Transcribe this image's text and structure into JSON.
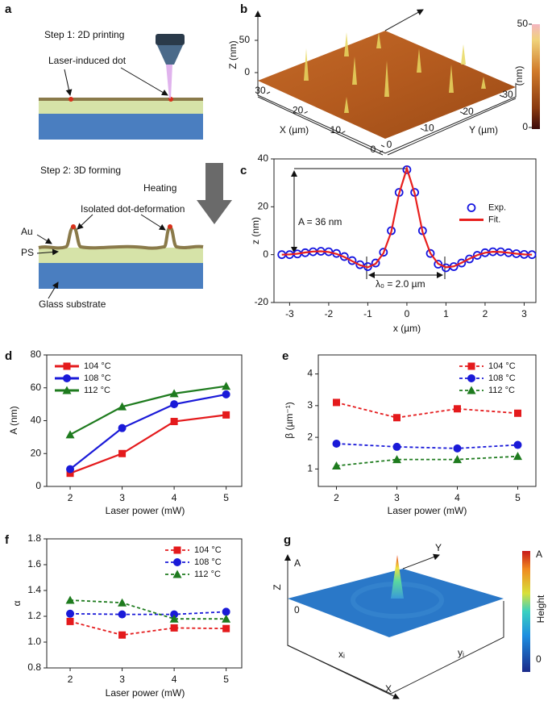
{
  "panel_a": {
    "label": "a",
    "step1": "Step 1: 2D printing",
    "dot_label": "Laser-induced dot",
    "step2": "Step 2: 3D forming",
    "heating": "Heating",
    "deformation": "Isolated dot-deformation",
    "au": "Au",
    "ps": "PS",
    "glass": "Glass substrate"
  },
  "chart_data": [
    {
      "type": "surface",
      "label": "b",
      "zlabel": "Z (nm)",
      "xlabel": "X (µm)",
      "ylabel": "Y (µm)",
      "colorbar_label": "(nm)",
      "xlim": [
        0,
        30
      ],
      "xticks": [
        0,
        10,
        20,
        30
      ],
      "ylim": [
        0,
        30
      ],
      "yticks": [
        0,
        10,
        20,
        30
      ],
      "zlim": [
        0,
        70
      ],
      "zticks": [
        0,
        50
      ],
      "clim": [
        0,
        50
      ],
      "cticks": [
        0,
        50
      ]
    },
    {
      "type": "line",
      "label": "c",
      "xlabel": "x (µm)",
      "ylabel": "z (nm)",
      "xlim": [
        -3.4,
        3.3
      ],
      "xticks": [
        -3,
        -2,
        -1,
        0,
        1,
        2,
        3
      ],
      "ylim": [
        -20,
        40
      ],
      "yticks": [
        -20,
        0,
        20,
        40
      ],
      "legend": "center-right",
      "annotations": [
        "A = 36 nm",
        "λ₀ = 2.0 µm"
      ],
      "x": [
        -3.2,
        -3.0,
        -2.8,
        -2.6,
        -2.4,
        -2.2,
        -2.0,
        -1.8,
        -1.6,
        -1.4,
        -1.2,
        -1.0,
        -0.8,
        -0.6,
        -0.4,
        -0.2,
        0,
        0.2,
        0.4,
        0.6,
        0.8,
        1.0,
        1.2,
        1.4,
        1.6,
        1.8,
        2.0,
        2.2,
        2.4,
        2.6,
        2.8,
        3.0,
        3.2
      ],
      "series": [
        {
          "name": "Exp.",
          "color": "#1515e0",
          "marker": "open-circle",
          "line": "none",
          "values": [
            0,
            0,
            0.3,
            0.8,
            1.2,
            1.4,
            1.2,
            0.5,
            -0.8,
            -2.5,
            -4.2,
            -5,
            -3.5,
            1,
            10,
            26,
            35.5,
            26,
            10,
            0.5,
            -4,
            -5.5,
            -5,
            -3.5,
            -1.8,
            -0.3,
            0.8,
            1.2,
            1.2,
            0.8,
            0.4,
            0.1,
            0
          ]
        },
        {
          "name": "Fit.",
          "color": "#e8201e",
          "marker": "none",
          "line": "solid",
          "values": [
            0,
            0.1,
            0.4,
            0.9,
            1.3,
            1.4,
            1.1,
            0.3,
            -1,
            -2.7,
            -4.4,
            -5.3,
            -3.8,
            0.6,
            9.5,
            25.5,
            36,
            25.5,
            9.5,
            0.6,
            -3.8,
            -5.3,
            -4.9,
            -3.4,
            -1.7,
            -0.2,
            0.8,
            1.2,
            1.1,
            0.8,
            0.4,
            0.1,
            0
          ]
        }
      ]
    },
    {
      "type": "line",
      "label": "d",
      "xlabel": "Laser power (mW)",
      "ylabel": "A (nm)",
      "xlim": [
        1.55,
        5.3
      ],
      "xticks": [
        2,
        3,
        4,
        5
      ],
      "ylim": [
        0,
        80
      ],
      "yticks": [
        0,
        20,
        40,
        60,
        80
      ],
      "legend": "upper-left",
      "x": [
        2,
        3,
        4,
        5
      ],
      "series": [
        {
          "name": "104 °C",
          "color": "#e41a1c",
          "marker": "square",
          "line": "solid",
          "values": [
            8,
            20,
            39.5,
            43.5
          ]
        },
        {
          "name": "108 °C",
          "color": "#1a1ad8",
          "marker": "circle",
          "line": "solid",
          "values": [
            10.5,
            35.5,
            50,
            56
          ]
        },
        {
          "name": "112 °C",
          "color": "#1e7b1e",
          "marker": "triangle",
          "line": "solid",
          "values": [
            31.5,
            48.5,
            56.5,
            61
          ]
        }
      ]
    },
    {
      "type": "line",
      "label": "e",
      "xlabel": "Laser power (mW)",
      "ylabel": "β (µm⁻¹)",
      "xlim": [
        1.7,
        5.3
      ],
      "xticks": [
        2,
        3,
        4,
        5
      ],
      "ylim": [
        0.45,
        4.6
      ],
      "yticks": [
        1,
        2,
        3,
        4
      ],
      "legend": "upper-right",
      "x": [
        2,
        3,
        4,
        5
      ],
      "series": [
        {
          "name": "104 °C",
          "color": "#e41a1c",
          "marker": "square",
          "line": "dashed",
          "values": [
            3.1,
            2.62,
            2.9,
            2.76
          ]
        },
        {
          "name": "108 °C",
          "color": "#1a1ad8",
          "marker": "circle",
          "line": "dashed",
          "values": [
            1.8,
            1.7,
            1.65,
            1.76
          ]
        },
        {
          "name": "112 °C",
          "color": "#1e7b1e",
          "marker": "triangle",
          "line": "dashed",
          "values": [
            1.1,
            1.3,
            1.3,
            1.4
          ]
        }
      ]
    },
    {
      "type": "line",
      "label": "f",
      "xlabel": "Laser power (mW)",
      "ylabel": "α",
      "xlim": [
        1.55,
        5.3
      ],
      "xticks": [
        2,
        3,
        4,
        5
      ],
      "ylim": [
        0.8,
        1.8
      ],
      "yticks": [
        0.8,
        {
          "value": 1,
          "label": "1.0"
        },
        1.2,
        1.4,
        1.6,
        1.8
      ],
      "legend": "upper-right",
      "x": [
        2,
        3,
        4,
        5
      ],
      "series": [
        {
          "name": "104 °C",
          "color": "#e41a1c",
          "marker": "square",
          "line": "dashed",
          "values": [
            1.16,
            1.055,
            1.11,
            1.105
          ]
        },
        {
          "name": "108 °C",
          "color": "#1a1ad8",
          "marker": "circle",
          "line": "dashed",
          "values": [
            1.22,
            1.215,
            1.215,
            1.235
          ]
        },
        {
          "name": "112 °C",
          "color": "#1e7b1e",
          "marker": "triangle",
          "line": "dashed",
          "values": [
            1.325,
            1.305,
            1.18,
            1.18
          ]
        }
      ]
    }
  ],
  "panel_g": {
    "label": "g",
    "z_axis": "Z",
    "z_top": "A",
    "z_zero": "0",
    "x_axis": "X",
    "y_axis": "Y",
    "xi": "xᵢ",
    "yi": "yᵢ",
    "colorbar_label": "Height",
    "colorbar_top": "A",
    "colorbar_bottom": "0"
  }
}
